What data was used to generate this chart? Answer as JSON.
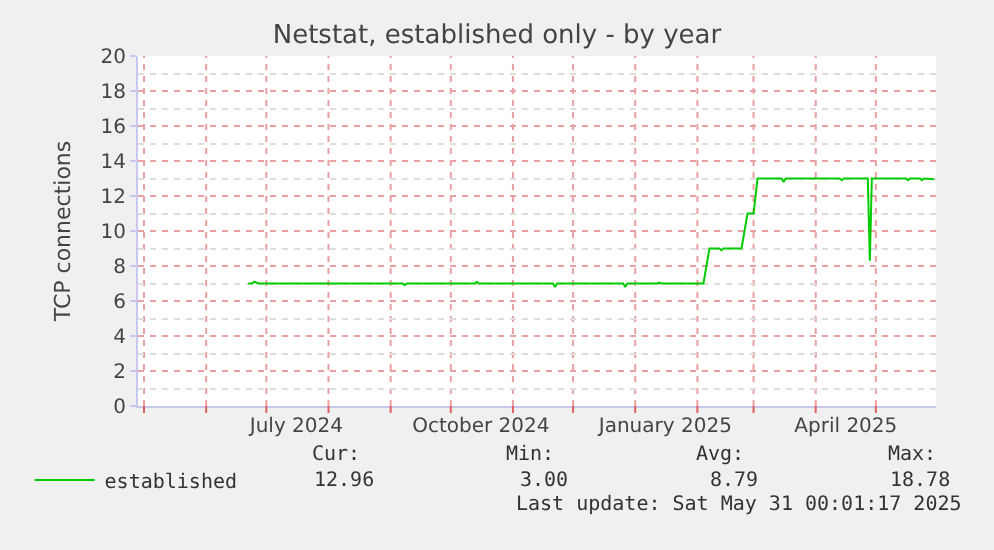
{
  "chart_data": {
    "type": "line",
    "title": "Netstat, established only - by year",
    "ylabel": "TCP connections",
    "x": [
      "2024-06-22",
      "2024-06-24",
      "2024-06-25",
      "2024-06-27",
      "2024-07-20",
      "2024-09-07",
      "2024-09-08",
      "2024-09-09",
      "2024-10-13",
      "2024-10-14",
      "2024-10-15",
      "2024-11-21",
      "2024-11-22",
      "2024-11-23",
      "2024-12-26",
      "2024-12-27",
      "2024-12-28",
      "2025-01-12",
      "2025-01-13",
      "2025-01-14",
      "2025-02-04",
      "2025-02-07",
      "2025-02-12",
      "2025-02-13",
      "2025-02-14",
      "2025-02-23",
      "2025-02-26",
      "2025-03-01",
      "2025-03-03",
      "2025-03-15",
      "2025-03-16",
      "2025-03-17",
      "2025-04-13",
      "2025-04-14",
      "2025-04-15",
      "2025-04-27",
      "2025-04-28",
      "2025-04-29",
      "2025-05-16",
      "2025-05-17",
      "2025-05-18",
      "2025-05-23",
      "2025-05-24",
      "2025-05-25",
      "2025-05-30"
    ],
    "series": [
      {
        "name": "established",
        "color": "#00cc00",
        "values": [
          7,
          7,
          7.1,
          7,
          7,
          7,
          6.9,
          7,
          7,
          7.1,
          7,
          7,
          6.8,
          7,
          7,
          6.8,
          7,
          7,
          7.05,
          7,
          7,
          9,
          9,
          8.9,
          9,
          9,
          11,
          11,
          13,
          13,
          12.8,
          13,
          13,
          12.9,
          13,
          13,
          8.3,
          13,
          13,
          12.9,
          13,
          13,
          12.9,
          13,
          12.96
        ]
      }
    ],
    "xlim": [
      "2024-04-28",
      "2025-05-31"
    ],
    "xticks": [
      {
        "value": "2024-05-01",
        "label": null
      },
      {
        "value": "2024-06-01",
        "label": null
      },
      {
        "value": "2024-07-01",
        "label": null
      },
      {
        "value": "2024-07-16",
        "label": "July 2024"
      },
      {
        "value": "2024-08-01",
        "label": null
      },
      {
        "value": "2024-09-01",
        "label": null
      },
      {
        "value": "2024-10-01",
        "label": null
      },
      {
        "value": "2024-10-16",
        "label": "October 2024"
      },
      {
        "value": "2024-11-01",
        "label": null
      },
      {
        "value": "2024-12-01",
        "label": null
      },
      {
        "value": "2025-01-01",
        "label": null
      },
      {
        "value": "2025-01-16",
        "label": "January 2025"
      },
      {
        "value": "2025-02-01",
        "label": null
      },
      {
        "value": "2025-03-01",
        "label": null
      },
      {
        "value": "2025-04-01",
        "label": null
      },
      {
        "value": "2025-04-16",
        "label": "April 2025"
      },
      {
        "value": "2025-05-01",
        "label": null
      }
    ],
    "ylim": [
      0,
      20
    ],
    "yticks": [
      0,
      2,
      4,
      6,
      8,
      10,
      12,
      14,
      16,
      18,
      20
    ],
    "grid": true,
    "legend": "bottom left",
    "marker": "none",
    "line_style": "solid",
    "annotations": [
      "Cur:",
      "Min:",
      "Avg:",
      "Max:",
      "12.96",
      "3.00",
      "8.79",
      "18.78",
      "Last update: Sat May 31 00:01:17 2025"
    ]
  }
}
